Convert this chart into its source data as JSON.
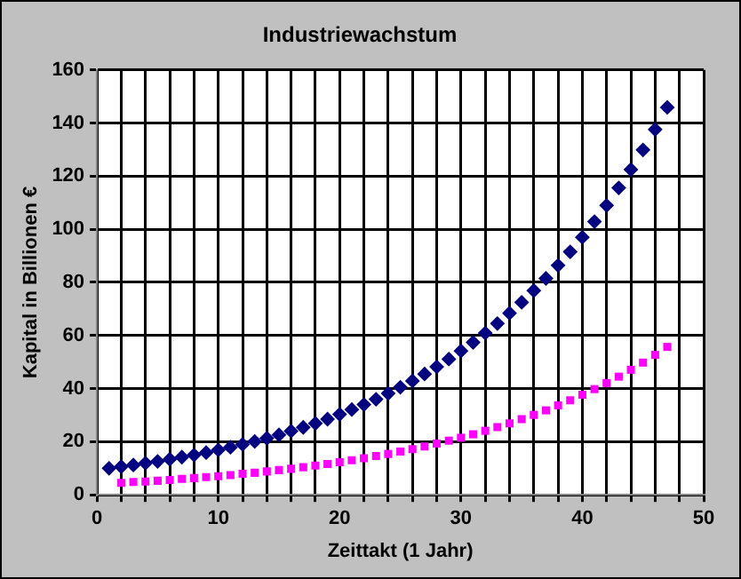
{
  "chart_data": {
    "type": "scatter",
    "title": "Industriewachstum",
    "xlabel": "Zeittakt (1 Jahr)",
    "ylabel": "Kapital in Billionen €",
    "xlim": [
      0,
      50
    ],
    "xticks": [
      0,
      {
        "value": 2,
        "label": null
      },
      {
        "value": 4,
        "label": null
      },
      {
        "value": 6,
        "label": null
      },
      {
        "value": 8,
        "label": null
      },
      10,
      {
        "value": 12,
        "label": null
      },
      {
        "value": 14,
        "label": null
      },
      {
        "value": 16,
        "label": null
      },
      {
        "value": 18,
        "label": null
      },
      20,
      {
        "value": 22,
        "label": null
      },
      {
        "value": 24,
        "label": null
      },
      {
        "value": 26,
        "label": null
      },
      {
        "value": 28,
        "label": null
      },
      30,
      {
        "value": 32,
        "label": null
      },
      {
        "value": 34,
        "label": null
      },
      {
        "value": 36,
        "label": null
      },
      {
        "value": 38,
        "label": null
      },
      40,
      {
        "value": 42,
        "label": null
      },
      {
        "value": 44,
        "label": null
      },
      {
        "value": 46,
        "label": null
      },
      {
        "value": 48,
        "label": null
      },
      50
    ],
    "ylim": [
      0,
      160
    ],
    "yticks": [
      0,
      20,
      40,
      60,
      80,
      100,
      120,
      140,
      160
    ],
    "grid": true,
    "legend": false,
    "series": [
      {
        "color": "#000080",
        "marker": "diamond",
        "x": [
          1,
          2,
          3,
          4,
          5,
          6,
          7,
          8,
          9,
          10,
          11,
          12,
          13,
          14,
          15,
          16,
          17,
          18,
          19,
          20,
          21,
          22,
          23,
          24,
          25,
          26,
          27,
          28,
          29,
          30,
          31,
          32,
          33,
          34,
          35,
          36,
          37,
          38,
          39,
          40,
          41,
          42,
          43,
          44,
          45,
          46,
          47
        ],
        "values": [
          10,
          10.6,
          11.2,
          11.9,
          12.6,
          13.4,
          14.2,
          15,
          15.9,
          16.9,
          17.9,
          19,
          20.1,
          21.3,
          22.6,
          24,
          25.4,
          26.9,
          28.5,
          30.3,
          32.1,
          34,
          36,
          38.2,
          40.5,
          42.9,
          45.5,
          48.2,
          51.1,
          54.2,
          57.4,
          60.9,
          64.5,
          68.4,
          72.5,
          76.9,
          81.5,
          86.4,
          91.5,
          97,
          102.9,
          109,
          115.6,
          122.5,
          129.9,
          137.6,
          145.9
        ]
      },
      {
        "color": "#ff00ff",
        "marker": "square",
        "x": [
          2,
          3,
          4,
          5,
          6,
          7,
          8,
          9,
          10,
          11,
          12,
          13,
          14,
          15,
          16,
          17,
          18,
          19,
          20,
          21,
          22,
          23,
          24,
          25,
          26,
          27,
          28,
          29,
          30,
          31,
          32,
          33,
          34,
          35,
          36,
          37,
          38,
          39,
          40,
          41,
          42,
          43,
          44,
          45,
          46,
          47
        ],
        "values": [
          4.5,
          4.8,
          5,
          5.3,
          5.6,
          6,
          6.3,
          6.7,
          7,
          7.4,
          7.9,
          8.3,
          8.8,
          9.3,
          9.8,
          10.4,
          11,
          11.6,
          12.3,
          13,
          13.8,
          14.6,
          15.4,
          16.3,
          17.2,
          18.2,
          19.3,
          20.4,
          21.5,
          22.8,
          24.1,
          25.5,
          26.9,
          28.5,
          30.1,
          31.8,
          33.7,
          35.6,
          37.7,
          39.8,
          42.1,
          44.5,
          47.1,
          49.8,
          52.7,
          55.7
        ]
      }
    ]
  }
}
